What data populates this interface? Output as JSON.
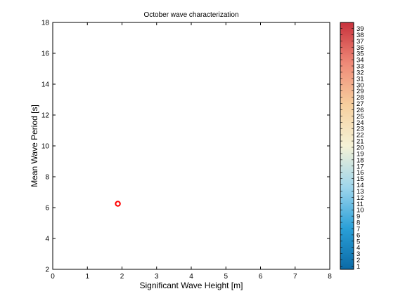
{
  "chart_data": {
    "type": "scatter",
    "title": "October wave characterization",
    "xlabel": "Significant Wave Height [m]",
    "ylabel": "Mean Wave Period [s]",
    "xlim": [
      0,
      8
    ],
    "ylim": [
      2,
      18
    ],
    "xticks": [
      0,
      1,
      2,
      3,
      4,
      5,
      6,
      7,
      8
    ],
    "yticks": [
      2,
      4,
      6,
      8,
      10,
      12,
      14,
      16,
      18
    ],
    "points": [
      {
        "x": 1.88,
        "y": 6.25,
        "color": "#ff0000"
      }
    ],
    "colorbar": {
      "min": 1,
      "max": 39,
      "labels": [
        1,
        2,
        3,
        4,
        5,
        6,
        7,
        8,
        9,
        10,
        11,
        12,
        13,
        14,
        15,
        16,
        17,
        18,
        19,
        20,
        21,
        22,
        23,
        24,
        25,
        26,
        27,
        28,
        29,
        30,
        31,
        32,
        33,
        34,
        35,
        36,
        37,
        38,
        39
      ],
      "colormap": [
        "#0b6aa6",
        "#2aa0d8",
        "#9fd6ec",
        "#f5f2d6",
        "#f6cf9e",
        "#ef8a78",
        "#c8313c"
      ]
    },
    "grid": false
  }
}
